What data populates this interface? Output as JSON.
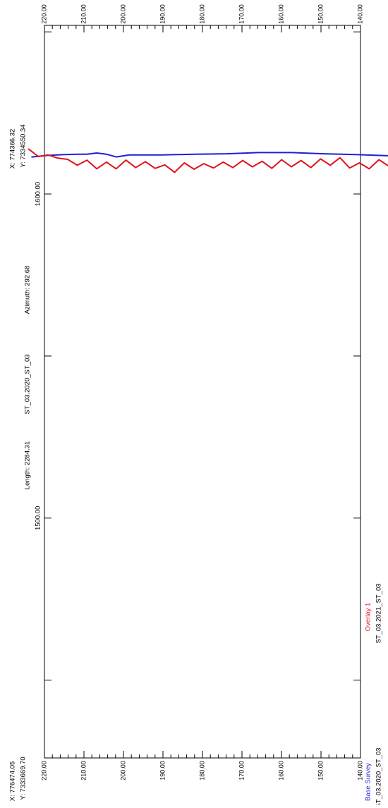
{
  "chart_data": {
    "type": "line",
    "orientation": "rotated-90-ccw",
    "title": "ST_03.2020_ST_03",
    "header": {
      "start_x": "X: 776474.05",
      "start_y": "Y: 7333669.70",
      "length": "Length: 2284.31",
      "azimuth": "Azimuth: 292.68",
      "end_x": "X: 774366.32",
      "end_y": "Y: 7334550.34"
    },
    "xlim": [
      1426,
      1652
    ],
    "ylim": [
      140,
      220
    ],
    "x_major_ticks": [
      1450,
      1500,
      1550,
      1600,
      1650
    ],
    "x_tick_labels": [
      {
        "value": 1500,
        "label": "1500.00"
      },
      {
        "value": 1600,
        "label": "1600.00"
      }
    ],
    "y_tick_labels": [
      "220.00",
      "210.00",
      "200.00",
      "190.00",
      "180.00",
      "170.00",
      "160.00",
      "150.00",
      "140.00"
    ],
    "y_tick_values": [
      220,
      210,
      200,
      190,
      180,
      170,
      160,
      150,
      140
    ],
    "legend_placement": "bottom-left",
    "colors": {
      "base": "#1f1fd6",
      "overlay": "#e0141b",
      "axis": "#000000"
    },
    "series": [
      {
        "name": "Base Survey",
        "legend_label": "Base Survey",
        "legend_subtitle": "ST_03.2020_ST_03",
        "color": "#1f1fd6",
        "x": [
          1426,
          1433,
          1440,
          1445,
          1448,
          1452,
          1455,
          1458,
          1461,
          1464,
          1467,
          1470,
          1474,
          1478,
          1482,
          1486,
          1490,
          1500,
          1510,
          1520,
          1530,
          1540,
          1550,
          1560,
          1570,
          1580,
          1590,
          1600,
          1610,
          1620,
          1624,
          1627,
          1630,
          1633,
          1636,
          1640,
          1645,
          1650
        ],
        "y": [
          205.8,
          205.8,
          205.8,
          206.2,
          206.5,
          207,
          207.3,
          207.7,
          207.8,
          207.2,
          206.3,
          205.2,
          204,
          203,
          200.2,
          196,
          192.5,
          192.4,
          192.3,
          192.3,
          192,
          191.8,
          192.1,
          192.3,
          192.6,
          192.6,
          192.3,
          192.2,
          192.0,
          192.0,
          191.5,
          192.2,
          192.5,
          192.2,
          192.2,
          192.1,
          191.9,
          191.5
        ]
      },
      {
        "name": "Overlay 1",
        "legend_label": "Overlay 1",
        "legend_subtitle": "ST_03.2021_ST_03",
        "color": "#e0141b",
        "x": [
          1426,
          1433,
          1440,
          1445,
          1448,
          1452,
          1455,
          1458,
          1461,
          1464,
          1467,
          1470,
          1474,
          1478,
          1482,
          1485,
          1486,
          1490,
          1495,
          1500,
          1505,
          1510,
          1515,
          1520,
          1525,
          1528,
          1531,
          1534,
          1537,
          1540,
          1543,
          1546,
          1549,
          1552,
          1555,
          1558,
          1561,
          1564,
          1567,
          1570,
          1573,
          1576,
          1579,
          1582,
          1585,
          1588,
          1591,
          1594,
          1597,
          1600,
          1603,
          1606,
          1609,
          1612,
          1615,
          1618,
          1621,
          1624,
          1627,
          1630,
          1633,
          1636,
          1639,
          1642,
          1645,
          1648,
          1651
        ],
        "y": [
          206,
          206,
          206.2,
          206.4,
          206.8,
          207.3,
          207.6,
          207.7,
          207.8,
          207.4,
          206.6,
          205.8,
          204.5,
          203,
          203.3,
          198,
          192.4,
          192.3,
          192,
          192.4,
          191.7,
          192.1,
          191.9,
          192.2,
          191.8,
          190.8,
          191.8,
          189.8,
          191.8,
          189.2,
          190.8,
          188.5,
          190,
          188.7,
          191.3,
          189.4,
          191,
          188.8,
          190.6,
          189,
          190.8,
          188.6,
          190.4,
          189,
          190.6,
          188.8,
          190.2,
          188.7,
          189.8,
          188.4,
          190,
          187.6,
          189.5,
          188.6,
          190.3,
          188.8,
          190.7,
          188.5,
          190.2,
          188.5,
          190.7,
          189.4,
          190.9,
          191.2,
          192,
          191.6,
          193.5
        ]
      }
    ]
  }
}
